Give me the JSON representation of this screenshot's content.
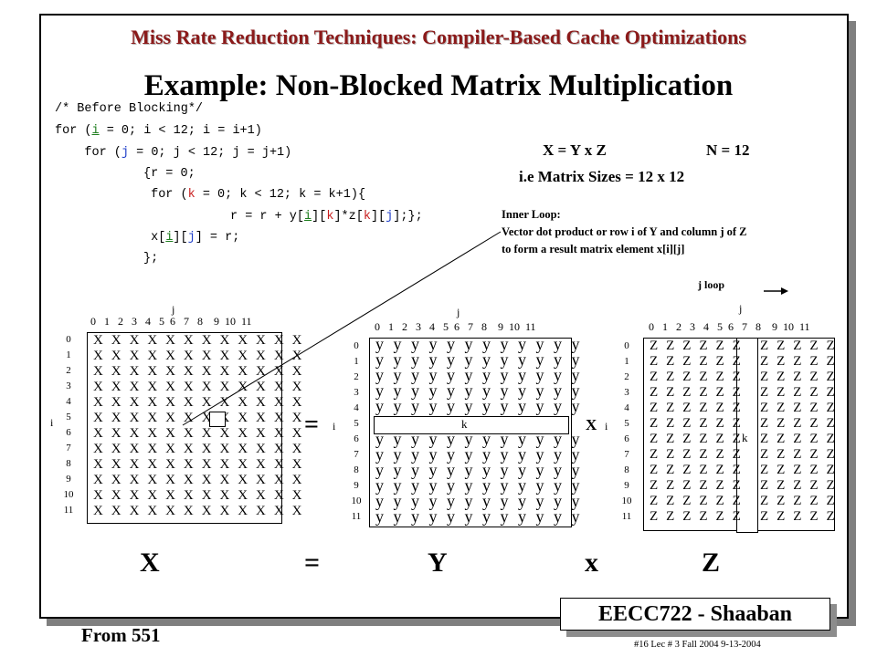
{
  "header": "Miss Rate Reduction Techniques:  Compiler-Based Cache Optimizations",
  "title": "Example:   Non-Blocked  Matrix Multiplication",
  "code": {
    "line1": "/* Before Blocking*/",
    "line2_a": "for (",
    "line2_i1": "i",
    "line2_b": " = 0; i < 12; i = i+1)",
    "line3_a": "    for (",
    "line3_j1": "j",
    "line3_b": " = 0; j < 12; j = j+1)",
    "line4": "{r = 0;",
    "line5_a": " for (",
    "line5_k": "k",
    "line5_b": " = 0; k < 12; k = k+1){",
    "line6_a": "r = r + y[",
    "line6_i": "i",
    "line6_b": "][",
    "line6_k": "k",
    "line6_c": "]*z[",
    "line6_k2": "k",
    "line6_d": "][",
    "line6_j": "j",
    "line6_e": "];};",
    "line7_a": " x[",
    "line7_i": "i",
    "line7_b": "][",
    "line7_j": "j",
    "line7_c": "] = r;",
    "line8": "};"
  },
  "equation": {
    "main": "X  = Y x  Z",
    "n": "N = 12",
    "sizes": "i.e  Matrix Sizes = 12 x 12"
  },
  "note": {
    "line1": "Inner Loop:",
    "line2": "Vector dot product or row i of Y and column j of Z",
    "line3": "to form a result matrix element x[i][j]"
  },
  "matrices": {
    "col_numbers": "0   1   2   3   4   5  6   7   8    9  10  11",
    "row_numbers": [
      "0",
      "1",
      "2",
      "3",
      "4",
      "5",
      "6",
      "7",
      "8",
      "9",
      "10",
      "11"
    ],
    "j_label": "j",
    "i_label": "i",
    "k_label": "k",
    "j_loop": "j  loop",
    "x_row": "X X X X X X X X X X X X",
    "y_row": "y y y y y y y y y y y y",
    "z_row_left": "Z Z Z Z Z Z",
    "z_row_right": "Z Z Z Z Z",
    "equals": "=",
    "times": "X"
  },
  "bottom": {
    "x": "X",
    "eq": "=",
    "y": "Y",
    "times": "x",
    "z": "Z"
  },
  "badge": "EECC722 - Shaaban",
  "from": "From 551",
  "footer": "#16   Lec # 3   Fall 2004  9-13-2004"
}
